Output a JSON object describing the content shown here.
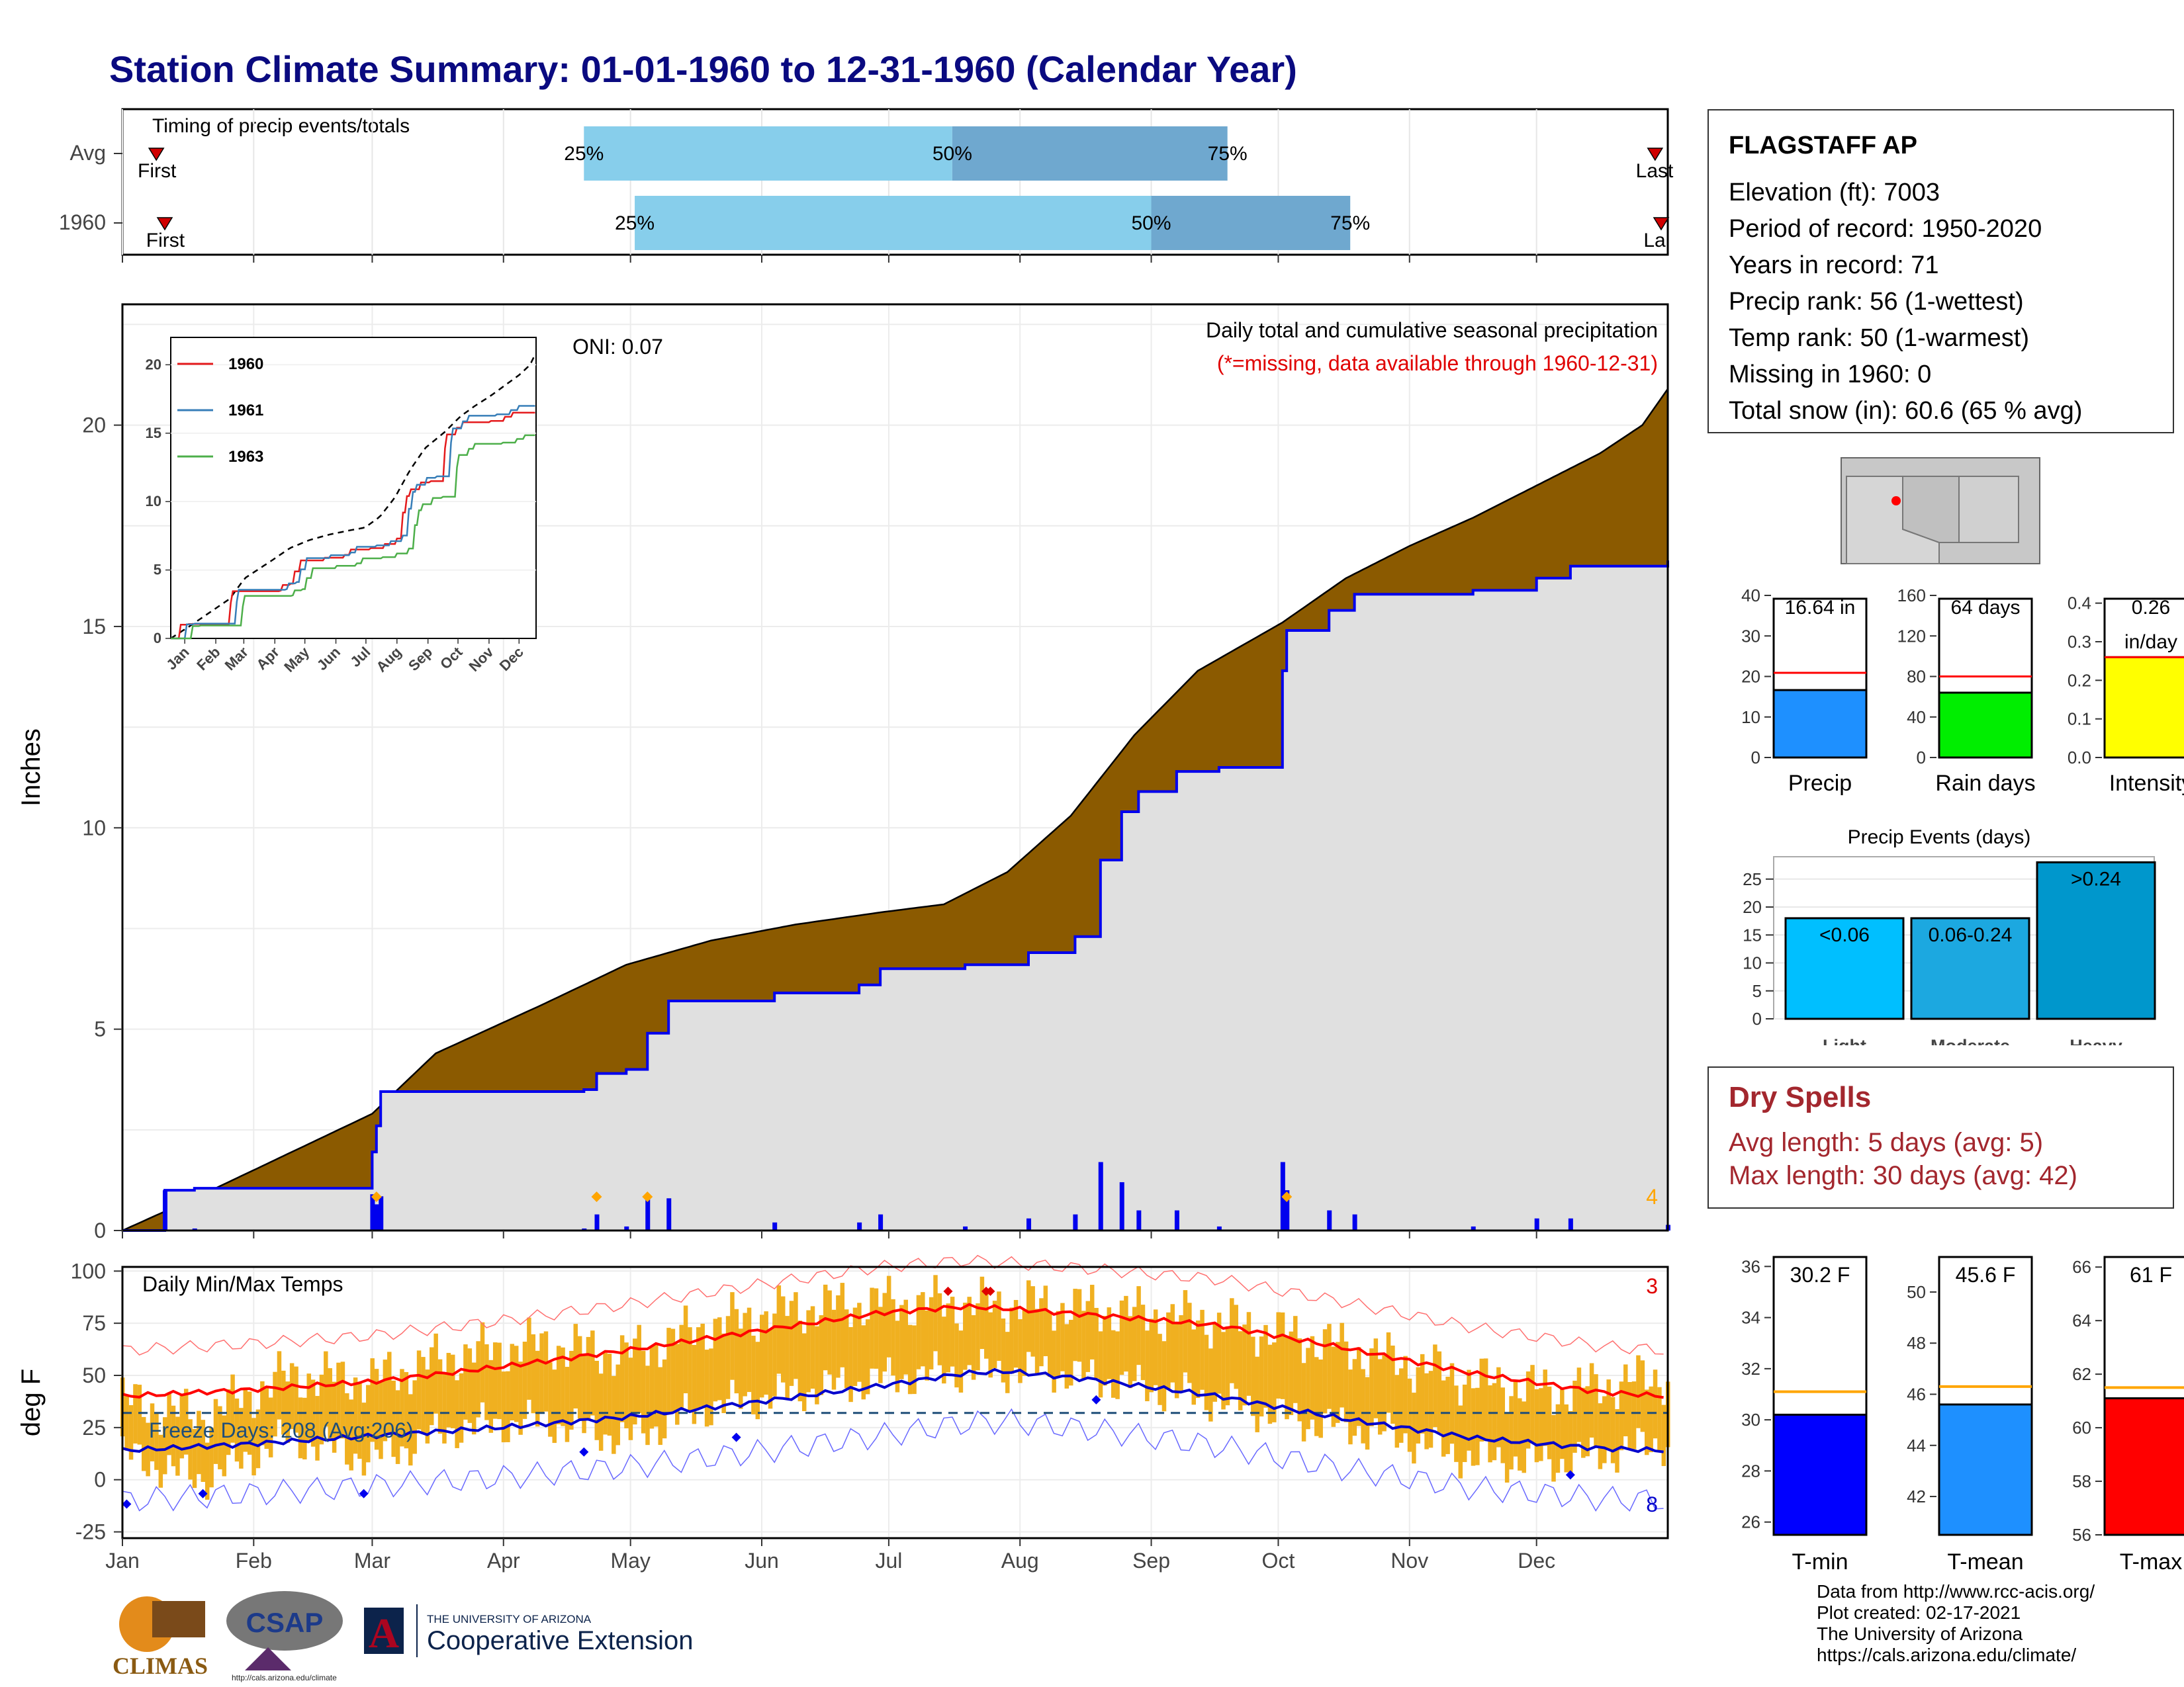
{
  "title": "Station Climate Summary: 01-01-1960 to 12-31-1960 (Calendar Year)",
  "timing_panel": {
    "title": "Timing of precip events/totals",
    "rows": [
      {
        "label": "Avg",
        "first_label": "First",
        "last_label": "Last",
        "first_day": 9,
        "last_day": 363,
        "p25_label": "25%",
        "p50_label": "50%",
        "p75_label": "75%",
        "p25_day": 110,
        "p50_day": 197,
        "p75_day": 262
      },
      {
        "label": "1960",
        "first_label": "First",
        "last_label": "La",
        "first_day": 11,
        "last_day": 366,
        "p25_label": "25%",
        "p50_label": "50%",
        "p75_label": "75%",
        "p25_day": 122,
        "p50_day": 244,
        "p75_day": 291
      }
    ],
    "colors": {
      "early": "#87ceeb",
      "late": "#6fa8cf",
      "marker": "#d00000"
    }
  },
  "precip_panel": {
    "ylabel": "Inches",
    "yticks": [
      "0",
      "5",
      "10",
      "15",
      "20"
    ],
    "oni": "ONI: 0.07",
    "note1": "Daily total and cumulative seasonal precipitation",
    "note2": "(*=missing, data available through 1960-12-31)",
    "corner_count": "4",
    "colors": {
      "cum_avg_fill": "#8b5a00",
      "cum_year_fill": "#e0e0e0",
      "line": "#0000ee",
      "daily_bar": "#0000ee",
      "snow": "#87ceeb",
      "extreme": "#ffa500"
    }
  },
  "inset": {
    "yticks": [
      "0",
      "5",
      "10",
      "15",
      "20"
    ],
    "xticks": [
      "Jan",
      "Feb",
      "Mar",
      "Apr",
      "May",
      "Jun",
      "Jul",
      "Aug",
      "Sep",
      "Oct",
      "Nov",
      "Dec"
    ],
    "legend": [
      {
        "name": "1960",
        "color": "#e41a1c"
      },
      {
        "name": "1961",
        "color": "#377eb8"
      },
      {
        "name": "1963",
        "color": "#4daf4a"
      }
    ]
  },
  "temp_panel": {
    "ylabel": "deg F",
    "title": "Daily Min/Max Temps",
    "yticks": [
      "100",
      "75",
      "50",
      "25",
      "0",
      "-25"
    ],
    "freeze": "Freeze Days: 208 (Avg:206)",
    "count_top": "3",
    "count_bottom": "8",
    "colors": {
      "bars": "#f0b020",
      "avg_max": "#ff0000",
      "avg_min": "#0000cc",
      "rec": "#ff7070",
      "rec_min": "#6a6aff",
      "freeze_line": "#1f4e79"
    }
  },
  "months": [
    "Jan",
    "Feb",
    "Mar",
    "Apr",
    "May",
    "Jun",
    "Jul",
    "Aug",
    "Sep",
    "Oct",
    "Nov",
    "Dec"
  ],
  "station": {
    "name": "FLAGSTAFF AP",
    "lines": [
      "Elevation (ft): 7003",
      "Period of record: 1950-2020",
      "Years in record: 71",
      "Precip rank: 56 (1-wettest)",
      "Temp rank: 50 (1-warmest)",
      "Missing in 1960: 0",
      "Total snow (in): 60.6 (65 % avg)"
    ]
  },
  "stats": {
    "precip": {
      "label": "Precip",
      "value_label": "16.64 in",
      "value": 16.64,
      "avg": 20.9,
      "max": 40,
      "ticks": [
        "0",
        "10",
        "20",
        "30",
        "40"
      ],
      "color": "#1e90ff"
    },
    "rain_days": {
      "label": "Rain days",
      "value_label": "64 days",
      "value": 64,
      "avg": 80,
      "max": 160,
      "ticks": [
        "0",
        "40",
        "80",
        "120",
        "160"
      ],
      "color": "#00ee00"
    },
    "intensity": {
      "label": "Intensity",
      "value_label": "0.26",
      "value_label2": "in/day",
      "value": 0.26,
      "avg": 0.26,
      "max": 0.42,
      "ticks": [
        "0.0",
        "0.1",
        "0.2",
        "0.3",
        "0.4"
      ],
      "color": "#ffff00"
    }
  },
  "events": {
    "title": "Precip Events (days)",
    "ticks": [
      "0",
      "5",
      "10",
      "15",
      "20",
      "25"
    ],
    "bars": [
      {
        "category": "Light",
        "bar_label": "<0.06",
        "value": 18,
        "color": "#00bfff"
      },
      {
        "category": "Moderate",
        "bar_label": "0.06-0.24",
        "value": 18,
        "color": "#1ca8e0"
      },
      {
        "category": "Heavy",
        "bar_label": ">0.24",
        "value": 28,
        "color": "#0097cc"
      }
    ]
  },
  "dry_spells": {
    "title": "Dry Spells",
    "avg": "Avg length: 5 days (avg: 5)",
    "max": "Max length: 30 days (avg: 42)"
  },
  "temp_stats": [
    {
      "label": "T-min",
      "value_label": "30.2 F",
      "value": 30.2,
      "avg": 31.1,
      "min": 25.5,
      "max": 36.5,
      "ticks": [
        "26",
        "28",
        "30",
        "32",
        "34",
        "36"
      ],
      "color": "#0000ff"
    },
    {
      "label": "T-mean",
      "value_label": "45.6 F",
      "value": 45.6,
      "avg": 46.3,
      "min": 40.5,
      "max": 51.5,
      "ticks": [
        "42",
        "44",
        "46",
        "48",
        "50"
      ],
      "color": "#1e90ff"
    },
    {
      "label": "T-max",
      "value_label": "61 F",
      "value": 61.1,
      "avg": 61.5,
      "min": 56,
      "max": 66.5,
      "ticks": [
        "56",
        "58",
        "60",
        "62",
        "64",
        "66"
      ],
      "color": "#ff0000"
    }
  ],
  "credits": [
    "Data from http://www.rcc-acis.org/",
    "Plot created: 02-17-2021",
    "The University of Arizona",
    "https://cals.arizona.edu/climate/"
  ],
  "logos": {
    "climas": "CLIMAS",
    "csap": "CSAP",
    "csap_url": "http://cals.arizona.edu/climate",
    "ua_top": "THE UNIVERSITY OF ARIZONA",
    "ua_main": "Cooperative Extension",
    "ua_letter": "A"
  },
  "chart_data": [
    {
      "type": "area",
      "title": "Daily total and cumulative seasonal precipitation",
      "ylabel": "Inches",
      "ylim": [
        0,
        23
      ],
      "x_unit": "day of year",
      "series": [
        {
          "name": "avg_cumulative",
          "x": [
            1,
            20,
            40,
            60,
            75,
            100,
            120,
            140,
            160,
            180,
            195,
            210,
            225,
            240,
            255,
            275,
            290,
            305,
            320,
            335,
            350,
            360,
            366
          ],
          "values": [
            0,
            0.9,
            1.9,
            2.9,
            4.4,
            5.6,
            6.6,
            7.2,
            7.6,
            7.9,
            8.1,
            8.9,
            10.3,
            12.3,
            13.9,
            15.1,
            16.2,
            17.0,
            17.7,
            18.5,
            19.3,
            20.0,
            20.9
          ]
        },
        {
          "name": "1960_cumulative",
          "x": [
            1,
            11,
            18,
            33,
            60,
            61,
            62,
            110,
            113,
            120,
            125,
            130,
            140,
            155,
            175,
            180,
            200,
            215,
            226,
            232,
            237,
            241,
            250,
            260,
            270,
            275,
            276,
            286,
            292,
            320,
            335,
            343,
            366
          ],
          "values": [
            0,
            1.0,
            1.05,
            1.05,
            1.95,
            2.6,
            3.45,
            3.5,
            3.9,
            4.0,
            4.9,
            5.7,
            5.7,
            5.9,
            6.1,
            6.5,
            6.6,
            6.9,
            7.3,
            9.2,
            10.4,
            10.9,
            11.4,
            11.5,
            11.5,
            13.9,
            14.9,
            15.4,
            15.8,
            15.9,
            16.2,
            16.5,
            16.64
          ]
        }
      ]
    },
    {
      "type": "line",
      "title": "Daily Min/Max Temps",
      "ylabel": "deg F",
      "ylim": [
        -28,
        102
      ],
      "x_unit": "day of year",
      "series": [
        {
          "name": "avg_max",
          "x": [
            1,
            30,
            60,
            90,
            120,
            150,
            180,
            200,
            210,
            230,
            260,
            290,
            320,
            350,
            366
          ],
          "values": [
            40,
            43,
            47,
            54,
            62,
            71,
            80,
            83,
            82,
            79,
            74,
            63,
            51,
            42,
            40
          ]
        },
        {
          "name": "avg_min",
          "x": [
            1,
            30,
            60,
            90,
            120,
            150,
            180,
            200,
            210,
            230,
            260,
            290,
            320,
            350,
            366
          ],
          "values": [
            14,
            17,
            21,
            25,
            30,
            37,
            45,
            51,
            52,
            48,
            40,
            29,
            20,
            15,
            14
          ]
        },
        {
          "name": "1960_max",
          "x": [
            1,
            20,
            40,
            60,
            80,
            100,
            120,
            140,
            160,
            180,
            200,
            220,
            240,
            260,
            280,
            300,
            320,
            340,
            366
          ],
          "values": [
            38,
            30,
            50,
            48,
            60,
            65,
            60,
            74,
            82,
            85,
            84,
            84,
            80,
            76,
            68,
            58,
            48,
            42,
            50
          ]
        },
        {
          "name": "1960_min",
          "x": [
            1,
            20,
            40,
            60,
            80,
            100,
            120,
            140,
            160,
            180,
            200,
            220,
            240,
            260,
            280,
            300,
            320,
            340,
            366
          ],
          "values": [
            12,
            0,
            20,
            10,
            25,
            28,
            20,
            35,
            42,
            48,
            52,
            52,
            45,
            38,
            28,
            22,
            10,
            8,
            18
          ]
        },
        {
          "name": "freeze",
          "x": [
            1,
            366
          ],
          "values": [
            32,
            32
          ]
        }
      ]
    },
    {
      "type": "bar",
      "title": "Precip Events (days)",
      "categories": [
        "Light",
        "Moderate",
        "Heavy"
      ],
      "values": [
        18,
        18,
        28
      ],
      "ylim": [
        0,
        29
      ]
    },
    {
      "type": "bar",
      "categories": [
        "Precip"
      ],
      "values": [
        16.64
      ],
      "ylim": [
        0,
        40
      ]
    },
    {
      "type": "bar",
      "categories": [
        "Rain days"
      ],
      "values": [
        64
      ],
      "ylim": [
        0,
        160
      ]
    },
    {
      "type": "bar",
      "categories": [
        "Intensity"
      ],
      "values": [
        0.26
      ],
      "ylim": [
        0,
        0.42
      ]
    },
    {
      "type": "bar",
      "categories": [
        "T-min"
      ],
      "values": [
        30.2
      ]
    },
    {
      "type": "bar",
      "categories": [
        "T-mean"
      ],
      "values": [
        45.6
      ]
    },
    {
      "type": "bar",
      "categories": [
        "T-max"
      ],
      "values": [
        61.1
      ]
    }
  ]
}
